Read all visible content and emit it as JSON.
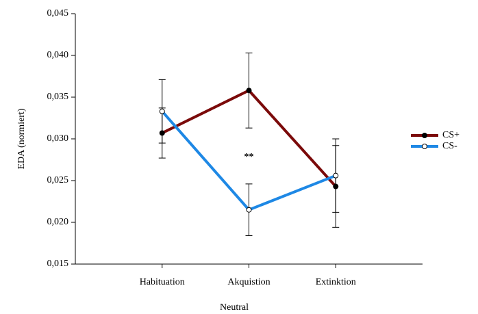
{
  "chart_data": {
    "type": "line",
    "x_label": "Neutral",
    "y_label": "EDA (normiert)",
    "categories": [
      "Habituation",
      "Akquistion",
      "Extinktion"
    ],
    "series": [
      {
        "name": "CS+",
        "color": "#7b0a0a",
        "marker_fill": "#000000",
        "values": [
          0.0307,
          0.0358,
          0.0243
        ],
        "errors": [
          0.003,
          0.0045,
          0.0049
        ]
      },
      {
        "name": "CS-",
        "color": "#1e88e5",
        "marker_fill": "#ffffff",
        "values": [
          0.0333,
          0.0215,
          0.0256
        ],
        "errors": [
          0.0038,
          0.0031,
          0.0044
        ]
      }
    ],
    "ylim": [
      0.015,
      0.045
    ],
    "yticks": [
      {
        "value": 0.015,
        "label": "0,015"
      },
      {
        "value": 0.02,
        "label": "0,020"
      },
      {
        "value": 0.025,
        "label": "0,025"
      },
      {
        "value": 0.03,
        "label": "0,030"
      },
      {
        "value": 0.035,
        "label": "0,035"
      },
      {
        "value": 0.04,
        "label": "0,040"
      },
      {
        "value": 0.045,
        "label": "0,045"
      }
    ],
    "annotation": "**",
    "legend": "right"
  }
}
